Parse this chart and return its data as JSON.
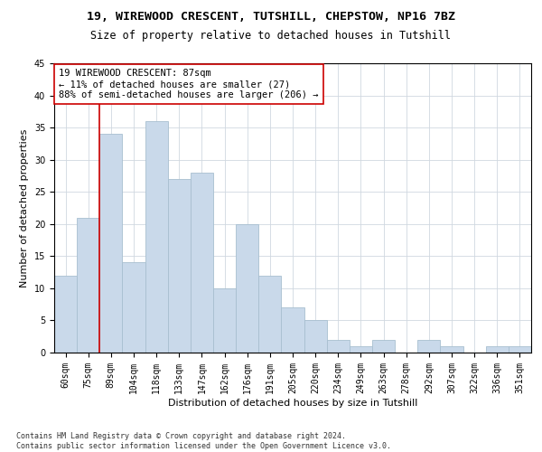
{
  "title1": "19, WIREWOOD CRESCENT, TUTSHILL, CHEPSTOW, NP16 7BZ",
  "title2": "Size of property relative to detached houses in Tutshill",
  "xlabel": "Distribution of detached houses by size in Tutshill",
  "ylabel": "Number of detached properties",
  "categories": [
    "60sqm",
    "75sqm",
    "89sqm",
    "104sqm",
    "118sqm",
    "133sqm",
    "147sqm",
    "162sqm",
    "176sqm",
    "191sqm",
    "205sqm",
    "220sqm",
    "234sqm",
    "249sqm",
    "263sqm",
    "278sqm",
    "292sqm",
    "307sqm",
    "322sqm",
    "336sqm",
    "351sqm"
  ],
  "values": [
    12,
    21,
    34,
    14,
    36,
    27,
    28,
    10,
    20,
    12,
    7,
    5,
    2,
    1,
    2,
    0,
    2,
    1,
    0,
    1,
    1
  ],
  "bar_color": "#c9d9ea",
  "bar_edge_color": "#a8bfd0",
  "vline_color": "#cc0000",
  "annotation_text": "19 WIREWOOD CRESCENT: 87sqm\n← 11% of detached houses are smaller (27)\n88% of semi-detached houses are larger (206) →",
  "annotation_box_color": "#ffffff",
  "annotation_box_edge": "#cc0000",
  "ylim": [
    0,
    45
  ],
  "yticks": [
    0,
    5,
    10,
    15,
    20,
    25,
    30,
    35,
    40,
    45
  ],
  "grid_color": "#d0d8e0",
  "footer_text": "Contains HM Land Registry data © Crown copyright and database right 2024.\nContains public sector information licensed under the Open Government Licence v3.0.",
  "title1_fontsize": 9.5,
  "title2_fontsize": 8.5,
  "xlabel_fontsize": 8,
  "ylabel_fontsize": 8,
  "tick_fontsize": 7,
  "annot_fontsize": 7.5,
  "footer_fontsize": 6
}
